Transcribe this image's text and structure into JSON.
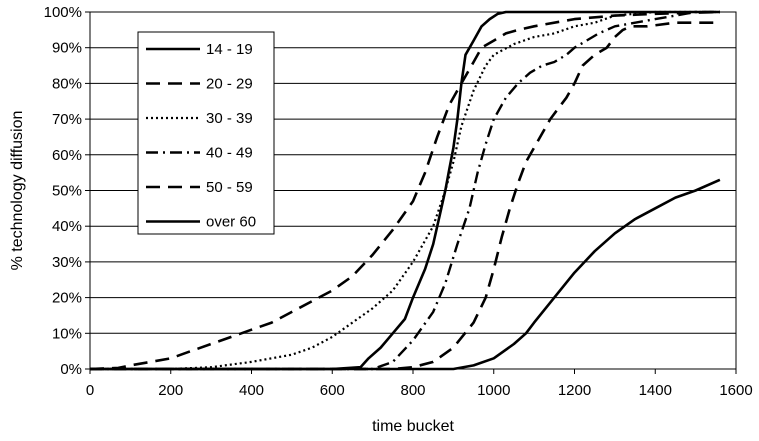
{
  "chart_data": {
    "type": "line",
    "title": "",
    "xlabel": "time bucket",
    "ylabel": "% technology diffusion",
    "xlim": [
      0,
      1600
    ],
    "ylim": [
      0,
      100
    ],
    "xticks": [
      0,
      200,
      400,
      600,
      800,
      1000,
      1200,
      1400,
      1600
    ],
    "yticks": [
      0,
      10,
      20,
      30,
      40,
      50,
      60,
      70,
      80,
      90,
      100
    ],
    "ytick_labels": [
      "0%",
      "10%",
      "20%",
      "30%",
      "40%",
      "50%",
      "60%",
      "70%",
      "80%",
      "90%",
      "100%"
    ],
    "grid": "horizontal",
    "legend_position": "top-left",
    "series": [
      {
        "name": "14 - 19",
        "style": "solid",
        "x": [
          0,
          600,
          670,
          690,
          720,
          750,
          780,
          800,
          830,
          850,
          870,
          880,
          890,
          900,
          910,
          920,
          930,
          950,
          970,
          990,
          1010,
          1030,
          1060,
          1100,
          1560
        ],
        "y": [
          0,
          0,
          0.5,
          3,
          6,
          10,
          14,
          20,
          28,
          35,
          45,
          50,
          56,
          62,
          70,
          80,
          88,
          92,
          96,
          98,
          99.5,
          100,
          100,
          100,
          100
        ]
      },
      {
        "name": "20 - 29",
        "style": "long-dash",
        "x": [
          0,
          70,
          100,
          150,
          200,
          250,
          300,
          350,
          400,
          450,
          500,
          550,
          600,
          650,
          700,
          750,
          800,
          830,
          860,
          890,
          920,
          950,
          970,
          1000,
          1030,
          1060,
          1100,
          1200,
          1300,
          1400,
          1560
        ],
        "y": [
          0,
          0.3,
          1,
          2,
          3,
          5,
          7,
          9,
          11,
          13,
          16,
          19,
          22,
          26,
          32,
          39,
          47,
          55,
          65,
          74,
          80,
          86,
          90,
          92,
          94,
          95,
          96,
          98,
          99,
          99.5,
          100
        ]
      },
      {
        "name": "30 - 39",
        "style": "dotted",
        "x": [
          0,
          200,
          300,
          400,
          450,
          500,
          550,
          600,
          650,
          700,
          750,
          800,
          850,
          880,
          900,
          920,
          950,
          980,
          1000,
          1050,
          1100,
          1150,
          1200,
          1250,
          1300,
          1400,
          1560
        ],
        "y": [
          0,
          0,
          0.5,
          2,
          3,
          4,
          6,
          9,
          13,
          17,
          22,
          30,
          40,
          50,
          58,
          68,
          78,
          85,
          88,
          91,
          93,
          94,
          96,
          97,
          99,
          100,
          100
        ]
      },
      {
        "name": "40 - 49",
        "style": "dash-dot",
        "x": [
          0,
          700,
          750,
          800,
          850,
          880,
          910,
          940,
          960,
          980,
          1000,
          1030,
          1060,
          1090,
          1120,
          1150,
          1180,
          1200,
          1230,
          1260,
          1280,
          1300,
          1350,
          1400,
          1450,
          1500,
          1560
        ],
        "y": [
          0,
          0,
          2,
          8,
          16,
          24,
          35,
          45,
          55,
          63,
          70,
          76,
          80,
          83,
          85,
          86,
          88,
          90,
          92,
          94,
          95,
          96,
          97,
          98,
          99,
          100,
          100
        ]
      },
      {
        "name": "50 - 59",
        "style": "long-dash",
        "x": [
          0,
          750,
          800,
          850,
          900,
          950,
          980,
          1000,
          1020,
          1040,
          1060,
          1080,
          1100,
          1120,
          1140,
          1160,
          1180,
          1200,
          1220,
          1250,
          1280,
          1300,
          1320,
          1340,
          1380,
          1450,
          1560
        ],
        "y": [
          0,
          0,
          0.5,
          2,
          6,
          13,
          20,
          28,
          37,
          45,
          52,
          58,
          62,
          66,
          70,
          73,
          76,
          80,
          85,
          88,
          90,
          93,
          95,
          96,
          96,
          97,
          97
        ]
      },
      {
        "name": "over 60",
        "style": "solid",
        "x": [
          0,
          900,
          950,
          1000,
          1050,
          1080,
          1100,
          1150,
          1200,
          1250,
          1300,
          1350,
          1400,
          1450,
          1500,
          1560
        ],
        "y": [
          0,
          0,
          1,
          3,
          7,
          10,
          13,
          20,
          27,
          33,
          38,
          42,
          45,
          48,
          50,
          53
        ]
      }
    ]
  }
}
